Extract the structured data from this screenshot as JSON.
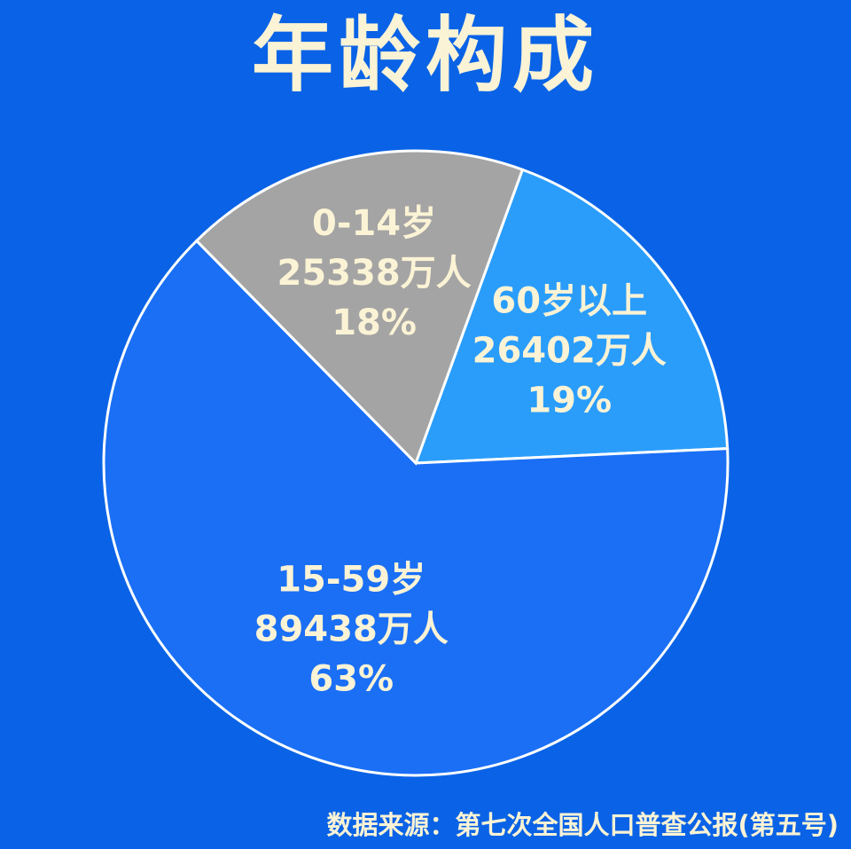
{
  "chart_data": {
    "type": "pie",
    "title": "年龄构成",
    "slices": [
      {
        "name": "60岁以上",
        "value": 26402,
        "value_label": "26402万人",
        "percent_label": "19%",
        "color": "#2A9DFB"
      },
      {
        "name": "15-59岁",
        "value": 89438,
        "value_label": "89438万人",
        "percent_label": "63%",
        "color": "#1A6FF5"
      },
      {
        "name": "0-14岁",
        "value": 25338,
        "value_label": "25338万人",
        "percent_label": "18%",
        "color": "#A4A4A4"
      }
    ],
    "source": "数据来源：第七次全国人口普查公报(第五号)",
    "background_color": "#0A63E6",
    "text_color": "#FBF3D5"
  }
}
